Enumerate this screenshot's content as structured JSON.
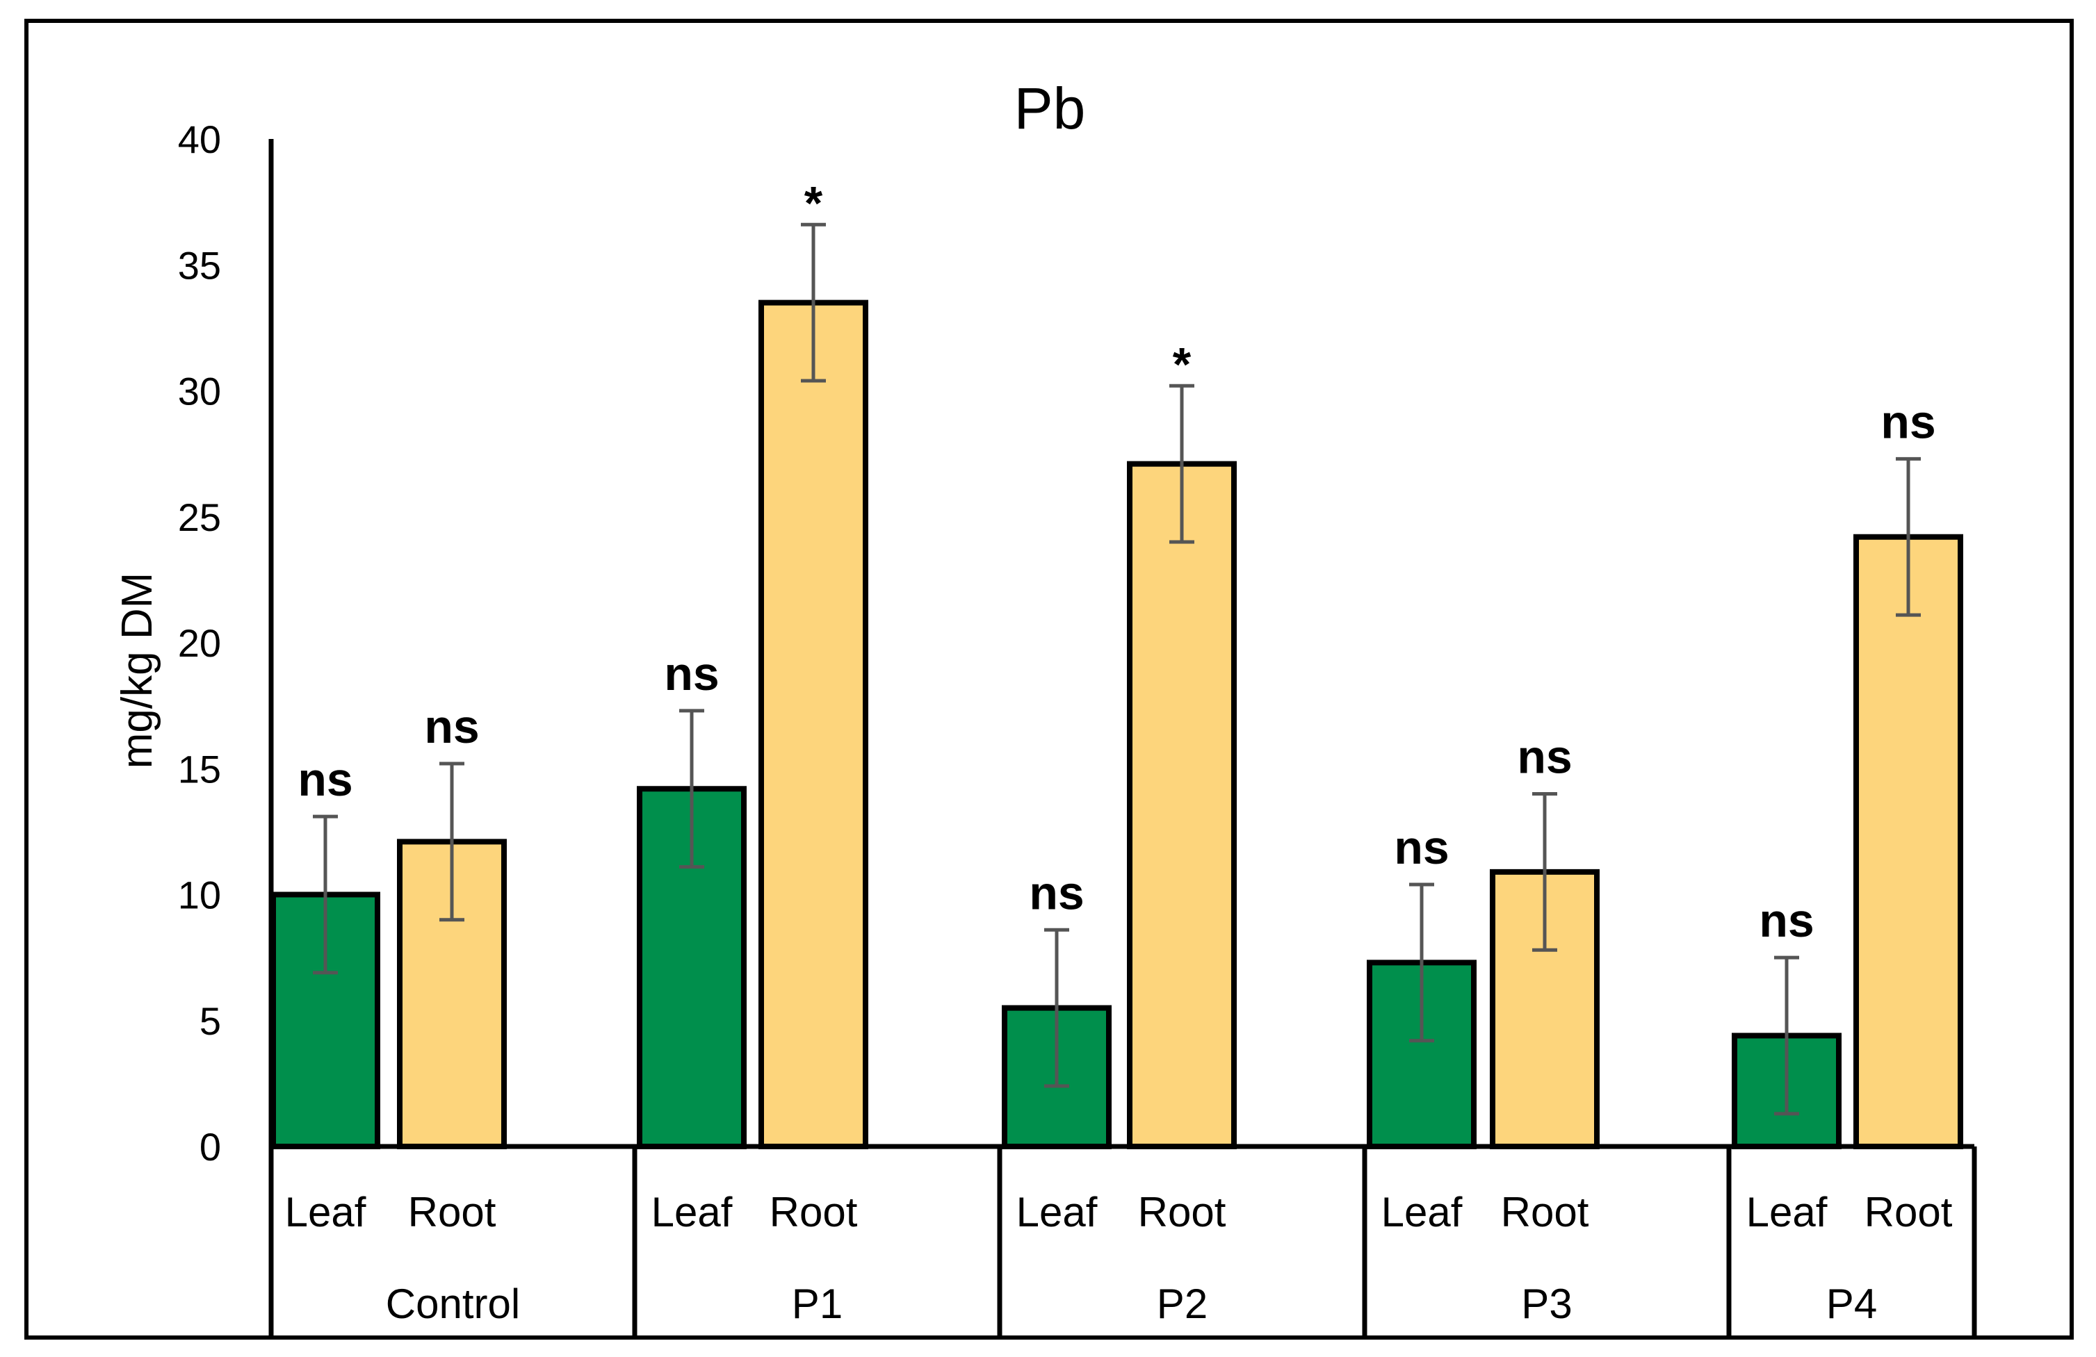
{
  "chart_data": {
    "type": "bar",
    "title": "Pb",
    "xlabel": "",
    "ylabel": "mg/kg DM",
    "ylim": [
      0,
      40
    ],
    "yticks": [
      "0",
      "5",
      "10",
      "15",
      "20",
      "25",
      "30",
      "35",
      "40"
    ],
    "grid": false,
    "legend": "none",
    "groups": [
      {
        "label": "Control",
        "bars": [
          {
            "label": "Leaf",
            "value": 10.0,
            "error": 3.1,
            "annotation": "ns"
          },
          {
            "label": "Root",
            "value": 12.1,
            "error": 3.1,
            "annotation": "ns"
          }
        ]
      },
      {
        "label": "P1",
        "bars": [
          {
            "label": "Leaf",
            "value": 14.2,
            "error": 3.1,
            "annotation": "ns"
          },
          {
            "label": "Root",
            "value": 33.5,
            "error": 3.1,
            "annotation": "*"
          }
        ]
      },
      {
        "label": "P2",
        "bars": [
          {
            "label": "Leaf",
            "value": 5.5,
            "error": 3.1,
            "annotation": "ns"
          },
          {
            "label": "Root",
            "value": 27.1,
            "error": 3.1,
            "annotation": "*"
          }
        ]
      },
      {
        "label": "P3",
        "bars": [
          {
            "label": "Leaf",
            "value": 7.3,
            "error": 3.1,
            "annotation": "ns"
          },
          {
            "label": "Root",
            "value": 10.9,
            "error": 3.1,
            "annotation": "ns"
          }
        ]
      },
      {
        "label": "P4",
        "bars": [
          {
            "label": "Leaf",
            "value": 4.4,
            "error": 3.1,
            "annotation": "ns"
          },
          {
            "label": "Root",
            "value": 24.2,
            "error": 3.1,
            "annotation": "ns"
          }
        ]
      }
    ],
    "colors": {
      "Leaf": "#008F4C",
      "Root": "#FDD57C",
      "outline": "#000000",
      "error_bar": "#555555"
    }
  }
}
